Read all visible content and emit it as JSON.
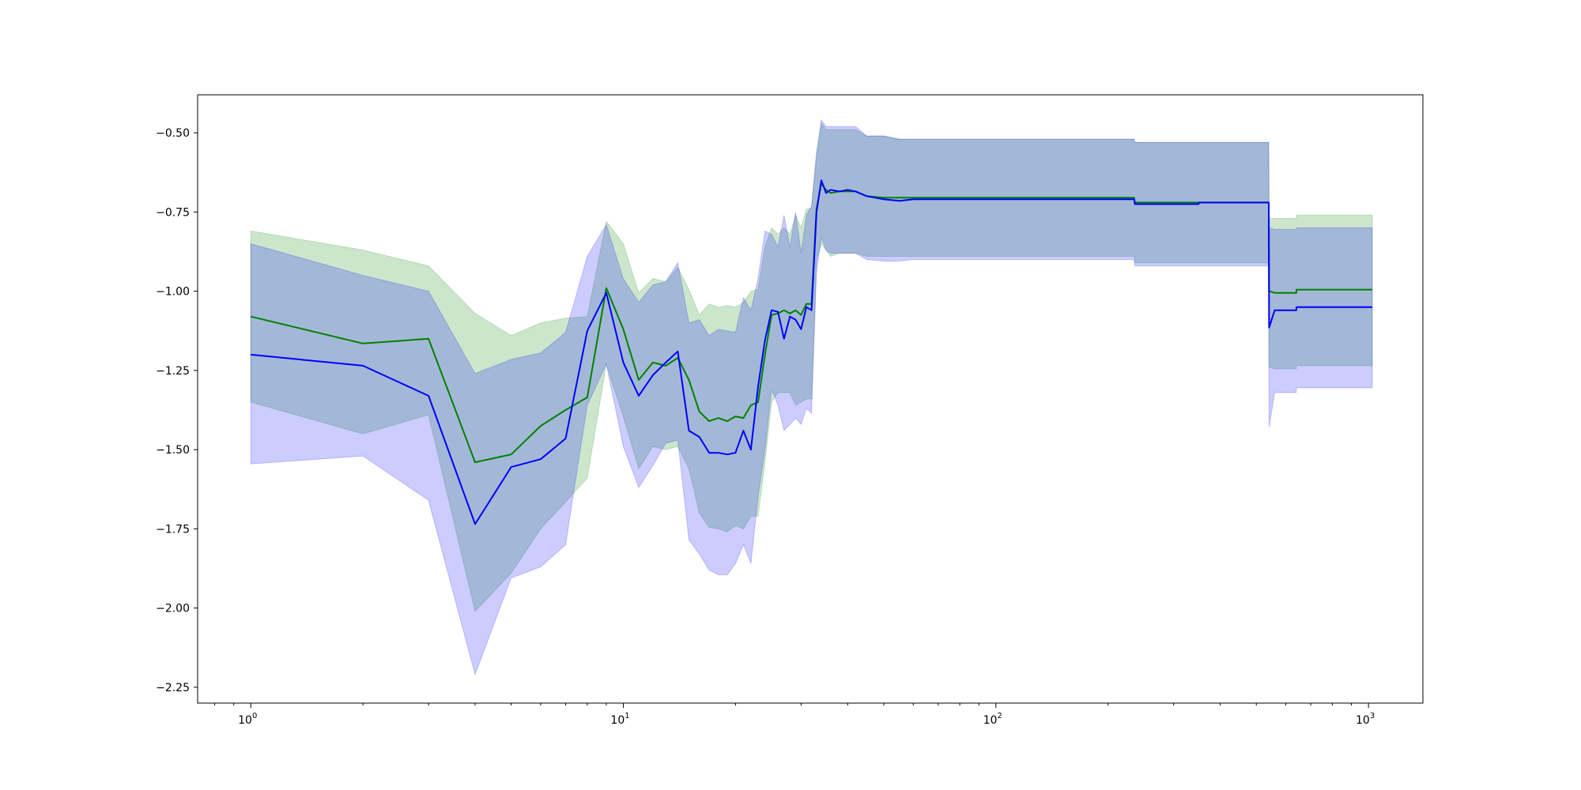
{
  "chart_data": {
    "type": "line",
    "title": "",
    "xlabel": "",
    "ylabel": "",
    "x_scale": "log",
    "xlim": [
      0.72,
      1400
    ],
    "ylim": [
      -2.3,
      -0.38
    ],
    "grid": false,
    "x_ticks": [
      {
        "value": 1,
        "base": "10",
        "exp": "0"
      },
      {
        "value": 10,
        "base": "10",
        "exp": "1"
      },
      {
        "value": 100,
        "base": "10",
        "exp": "2"
      },
      {
        "value": 1000,
        "base": "10",
        "exp": "3"
      }
    ],
    "y_ticks": [
      {
        "value": -0.5,
        "label": "−0.50"
      },
      {
        "value": -0.75,
        "label": "−0.75"
      },
      {
        "value": -1.0,
        "label": "−1.00"
      },
      {
        "value": -1.25,
        "label": "−1.25"
      },
      {
        "value": -1.5,
        "label": "−1.50"
      },
      {
        "value": -1.75,
        "label": "−1.75"
      },
      {
        "value": -2.0,
        "label": "−2.00"
      },
      {
        "value": -2.25,
        "label": "−2.25"
      }
    ],
    "series": [
      {
        "color": "#008000",
        "band_color": "#008000",
        "band_opacity": 0.2,
        "x": [
          1,
          2,
          3,
          4,
          5,
          6,
          7,
          8,
          9,
          10,
          11,
          12,
          13,
          14,
          15,
          16,
          17,
          18,
          19,
          20,
          21,
          22,
          23,
          24,
          25,
          26,
          27,
          28,
          29,
          30,
          31,
          32,
          33,
          34,
          35,
          36,
          38,
          40,
          42,
          45,
          50,
          55,
          60,
          80,
          100,
          150,
          235,
          236,
          300,
          350,
          351,
          450,
          540,
          541,
          560,
          640,
          641,
          800,
          1024
        ],
        "mean": [
          -1.08,
          -1.165,
          -1.15,
          -1.54,
          -1.515,
          -1.425,
          -1.375,
          -1.335,
          -0.99,
          -1.12,
          -1.28,
          -1.225,
          -1.235,
          -1.21,
          -1.28,
          -1.38,
          -1.41,
          -1.4,
          -1.41,
          -1.395,
          -1.4,
          -1.36,
          -1.35,
          -1.2,
          -1.075,
          -1.07,
          -1.06,
          -1.07,
          -1.06,
          -1.075,
          -1.04,
          -1.04,
          -0.74,
          -0.66,
          -0.68,
          -0.69,
          -0.685,
          -0.685,
          -0.685,
          -0.7,
          -0.705,
          -0.705,
          -0.705,
          -0.705,
          -0.705,
          -0.705,
          -0.705,
          -0.72,
          -0.72,
          -0.72,
          -0.72,
          -0.72,
          -0.72,
          -1.0,
          -1.005,
          -1.005,
          -0.995,
          -0.995,
          -0.995
        ],
        "upper": [
          -0.81,
          -0.87,
          -0.92,
          -1.07,
          -1.14,
          -1.1,
          -1.085,
          -1.08,
          -0.78,
          -0.85,
          -1.005,
          -0.96,
          -0.97,
          -0.925,
          -0.995,
          -1.075,
          -1.04,
          -1.05,
          -1.045,
          -1.05,
          -1.035,
          -1.0,
          -0.995,
          -0.86,
          -0.8,
          -0.82,
          -0.8,
          -0.82,
          -0.76,
          -0.8,
          -0.74,
          -0.74,
          -0.58,
          -0.47,
          -0.49,
          -0.49,
          -0.49,
          -0.49,
          -0.49,
          -0.51,
          -0.51,
          -0.52,
          -0.52,
          -0.52,
          -0.52,
          -0.52,
          -0.52,
          -0.53,
          -0.53,
          -0.53,
          -0.53,
          -0.53,
          -0.53,
          -0.77,
          -0.77,
          -0.77,
          -0.76,
          -0.76,
          -0.76
        ],
        "lower": [
          -1.35,
          -1.45,
          -1.39,
          -2.01,
          -1.89,
          -1.75,
          -1.665,
          -1.59,
          -1.23,
          -1.395,
          -1.56,
          -1.49,
          -1.5,
          -1.49,
          -1.56,
          -1.7,
          -1.745,
          -1.75,
          -1.76,
          -1.74,
          -1.75,
          -1.71,
          -1.71,
          -1.54,
          -1.35,
          -1.32,
          -1.32,
          -1.32,
          -1.36,
          -1.35,
          -1.34,
          -1.34,
          -0.9,
          -0.85,
          -0.87,
          -0.89,
          -0.88,
          -0.88,
          -0.88,
          -0.89,
          -0.89,
          -0.89,
          -0.89,
          -0.89,
          -0.89,
          -0.89,
          -0.89,
          -0.91,
          -0.91,
          -0.91,
          -0.91,
          -0.91,
          -0.91,
          -1.24,
          -1.245,
          -1.245,
          -1.235,
          -1.235,
          -1.235
        ]
      },
      {
        "color": "#0000ff",
        "band_color": "#0000ff",
        "band_opacity": 0.2,
        "x": [
          1,
          2,
          3,
          4,
          5,
          6,
          7,
          8,
          9,
          10,
          11,
          12,
          13,
          14,
          15,
          16,
          17,
          18,
          19,
          20,
          21,
          22,
          23,
          24,
          25,
          26,
          27,
          28,
          29,
          30,
          31,
          32,
          33,
          34,
          35,
          36,
          38,
          40,
          42,
          45,
          50,
          55,
          60,
          80,
          100,
          150,
          235,
          236,
          300,
          350,
          351,
          450,
          540,
          541,
          560,
          640,
          641,
          800,
          1024
        ],
        "mean": [
          -1.2,
          -1.235,
          -1.33,
          -1.735,
          -1.555,
          -1.53,
          -1.465,
          -1.125,
          -1.005,
          -1.225,
          -1.33,
          -1.265,
          -1.225,
          -1.19,
          -1.44,
          -1.46,
          -1.51,
          -1.51,
          -1.515,
          -1.51,
          -1.44,
          -1.5,
          -1.3,
          -1.155,
          -1.06,
          -1.065,
          -1.15,
          -1.08,
          -1.09,
          -1.12,
          -1.05,
          -1.06,
          -0.75,
          -0.65,
          -0.69,
          -0.68,
          -0.685,
          -0.68,
          -0.685,
          -0.7,
          -0.71,
          -0.715,
          -0.71,
          -0.71,
          -0.71,
          -0.71,
          -0.71,
          -0.725,
          -0.725,
          -0.725,
          -0.72,
          -0.72,
          -0.72,
          -1.115,
          -1.06,
          -1.06,
          -1.05,
          -1.05,
          -1.05
        ],
        "upper": [
          -0.85,
          -0.95,
          -1.0,
          -1.26,
          -1.215,
          -1.195,
          -1.13,
          -0.89,
          -0.79,
          -0.96,
          -1.035,
          -0.98,
          -0.97,
          -0.91,
          -1.1,
          -1.09,
          -1.14,
          -1.12,
          -1.125,
          -1.13,
          -1.02,
          -1.06,
          -0.96,
          -0.81,
          -0.82,
          -0.86,
          -0.76,
          -0.86,
          -0.75,
          -0.88,
          -0.76,
          -0.73,
          -0.56,
          -0.46,
          -0.48,
          -0.48,
          -0.48,
          -0.48,
          -0.48,
          -0.51,
          -0.51,
          -0.52,
          -0.52,
          -0.52,
          -0.52,
          -0.52,
          -0.52,
          -0.53,
          -0.53,
          -0.53,
          -0.53,
          -0.53,
          -0.53,
          -0.8,
          -0.805,
          -0.805,
          -0.8,
          -0.8,
          -0.8
        ],
        "lower": [
          -1.545,
          -1.52,
          -1.66,
          -2.21,
          -1.905,
          -1.87,
          -1.8,
          -1.36,
          -1.23,
          -1.49,
          -1.62,
          -1.55,
          -1.48,
          -1.47,
          -1.785,
          -1.83,
          -1.88,
          -1.895,
          -1.895,
          -1.86,
          -1.8,
          -1.86,
          -1.65,
          -1.5,
          -1.31,
          -1.36,
          -1.44,
          -1.42,
          -1.4,
          -1.42,
          -1.37,
          -1.385,
          -0.94,
          -0.83,
          -0.87,
          -0.88,
          -0.88,
          -0.88,
          -0.88,
          -0.9,
          -0.905,
          -0.905,
          -0.9,
          -0.9,
          -0.9,
          -0.9,
          -0.9,
          -0.92,
          -0.92,
          -0.92,
          -0.92,
          -0.92,
          -0.92,
          -1.43,
          -1.32,
          -1.32,
          -1.305,
          -1.305,
          -1.305
        ]
      }
    ]
  }
}
